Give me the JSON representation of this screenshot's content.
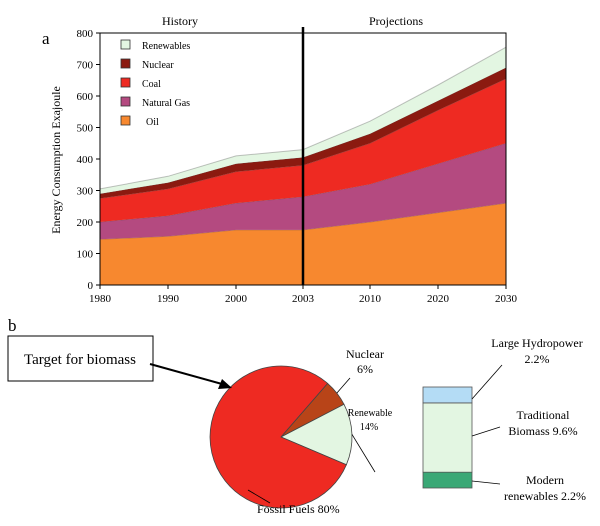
{
  "panel_a_label": "a",
  "panel_b_label": "b",
  "chart_data": [
    {
      "type": "area",
      "stacked": true,
      "ylabel": "Energy Consumption Exajoule",
      "ylim": [
        0,
        800
      ],
      "yticks": [
        "0",
        "100",
        "200",
        "300",
        "400",
        "500",
        "600",
        "700",
        "800"
      ],
      "x": [
        1980,
        1990,
        2000,
        2003,
        2010,
        2020,
        2030
      ],
      "xtick_labels": [
        "1980",
        "1990",
        "2000",
        "2003",
        "2010",
        "2020",
        "2030"
      ],
      "regions": [
        {
          "label": "History",
          "from": 1980,
          "to": 2003
        },
        {
          "label": "Projections",
          "from": 2003,
          "to": 2030
        }
      ],
      "divider_x": 2003,
      "series": [
        {
          "name": "Oil",
          "color": "#f7882f",
          "values": [
            145,
            155,
            175,
            175,
            200,
            230,
            260
          ]
        },
        {
          "name": "Natural Gas",
          "color": "#b44a80",
          "values": [
            55,
            65,
            85,
            105,
            120,
            155,
            190
          ]
        },
        {
          "name": "Coal",
          "color": "#ee2a22",
          "values": [
            75,
            85,
            100,
            100,
            130,
            170,
            205
          ]
        },
        {
          "name": "Nuclear",
          "color": "#8b1a10",
          "values": [
            15,
            20,
            25,
            25,
            30,
            30,
            35
          ]
        },
        {
          "name": "Renewables",
          "color": "#e3f6e2",
          "values": [
            15,
            20,
            25,
            25,
            40,
            50,
            65
          ]
        }
      ],
      "legend_order": [
        "Renewables",
        "Nuclear",
        "Coal",
        "Natural Gas",
        "Oil"
      ],
      "legend_position": "top-left",
      "grid": false
    },
    {
      "type": "pie",
      "slices": [
        {
          "label": "Fossil Fuels 80%",
          "value": 80,
          "color": "#ee2a22"
        },
        {
          "label_lines": [
            "Nuclear",
            "6%"
          ],
          "value": 6,
          "color": "#b84418"
        },
        {
          "label_lines": [
            "Renewable",
            "14%"
          ],
          "value": 14,
          "color": "#e3f6e2"
        }
      ],
      "callout": "Target for biomass"
    },
    {
      "type": "bar",
      "stacked": true,
      "segments": [
        {
          "label_lines": [
            "Modern",
            "renewables 2.2%"
          ],
          "value": 2.2,
          "color": "#3aa876"
        },
        {
          "label_lines": [
            "Traditional",
            "Biomass  9.6%"
          ],
          "value": 9.6,
          "color": "#e3f6e2"
        },
        {
          "label_lines": [
            "Large Hydropower",
            "2.2%"
          ],
          "value": 2.2,
          "color": "#b4dcf5"
        }
      ]
    }
  ]
}
